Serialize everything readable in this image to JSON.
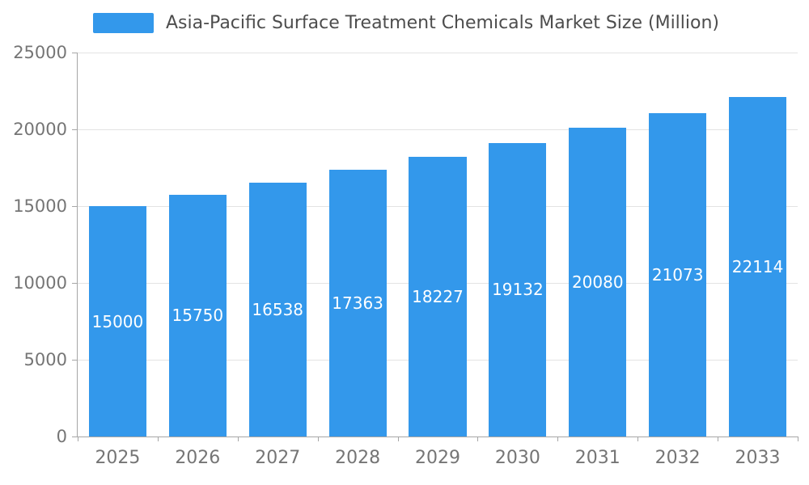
{
  "chart_data": {
    "type": "bar",
    "title": "Asia-Pacific Surface Treatment Chemicals Market Size (Million)",
    "categories": [
      "2025",
      "2026",
      "2027",
      "2028",
      "2029",
      "2030",
      "2031",
      "2032",
      "2033"
    ],
    "values": [
      15000,
      15750,
      16538,
      17363,
      18227,
      19132,
      20080,
      21073,
      22114
    ],
    "xlabel": "",
    "ylabel": "",
    "ylim": [
      0,
      25000
    ],
    "yticks": [
      0,
      5000,
      10000,
      15000,
      20000,
      25000
    ],
    "grid": true,
    "legend_position": "top",
    "bar_color": "#3398EB",
    "bar_label_color": "#FFFFFF"
  }
}
